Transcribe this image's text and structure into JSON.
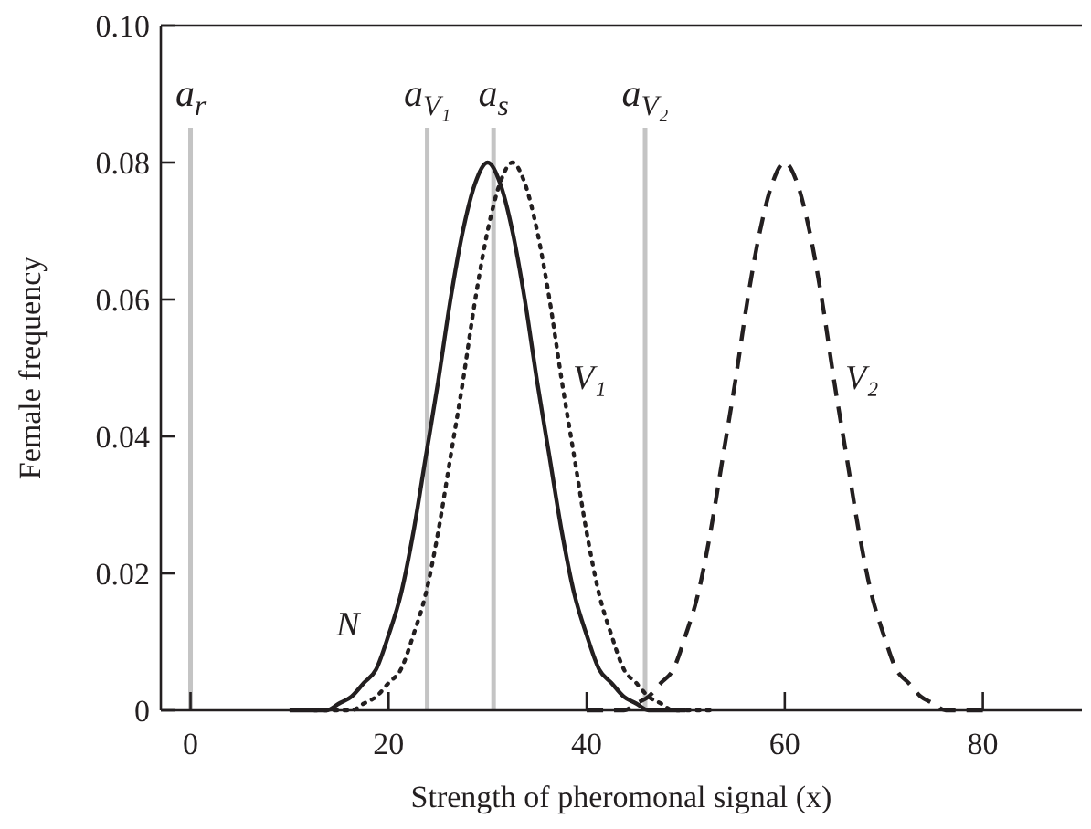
{
  "chart_data": {
    "type": "line",
    "xlabel": "Strength of pheromonal signal (x)",
    "ylabel": "Female frequency",
    "xlim": [
      -3,
      90
    ],
    "ylim": [
      0,
      0.1
    ],
    "xticks": [
      0,
      20,
      40,
      60,
      80
    ],
    "yticks": [
      0,
      0.02,
      0.04,
      0.06,
      0.08,
      {
        "value": 0.1,
        "label": "0.10"
      }
    ],
    "series": [
      {
        "name": "N",
        "color": "#231f20",
        "line_style": "solid",
        "x": [
          10,
          11.25,
          12.5,
          13.75,
          15,
          16.25,
          17.5,
          18.75,
          20,
          21.25,
          22.5,
          23.75,
          25,
          26.25,
          27.5,
          28.75,
          30,
          31.25,
          32.5,
          33.75,
          35,
          36.25,
          37.5,
          38.75,
          40,
          41.25,
          42.5,
          43.75,
          45,
          46.25,
          47.5,
          48.75,
          50
        ],
        "values": [
          0,
          0,
          0,
          0,
          0.001,
          0.002,
          0.004,
          0.006,
          0.011,
          0.017,
          0.026,
          0.037,
          0.048,
          0.06,
          0.07,
          0.077,
          0.08,
          0.077,
          0.07,
          0.06,
          0.048,
          0.037,
          0.026,
          0.017,
          0.011,
          0.006,
          0.004,
          0.002,
          0.001,
          0,
          0,
          0,
          0
        ]
      },
      {
        "name": "V₁",
        "color": "#231f20",
        "line_style": "dotted",
        "x": [
          12.5,
          13.75,
          15,
          16.25,
          17.5,
          18.75,
          20,
          21.25,
          22.5,
          23.75,
          25,
          26.25,
          27.5,
          28.75,
          30,
          31.25,
          32.5,
          33.75,
          35,
          36.25,
          37.5,
          38.75,
          40,
          41.25,
          42.5,
          43.75,
          45,
          46.25,
          47.5,
          48.75,
          50,
          51.25,
          52.5
        ],
        "values": [
          0,
          0,
          0,
          0,
          0.001,
          0.002,
          0.004,
          0.006,
          0.011,
          0.017,
          0.026,
          0.037,
          0.048,
          0.06,
          0.07,
          0.077,
          0.08,
          0.077,
          0.07,
          0.06,
          0.048,
          0.037,
          0.026,
          0.017,
          0.011,
          0.006,
          0.004,
          0.002,
          0.001,
          0,
          0,
          0,
          0
        ]
      },
      {
        "name": "V₂",
        "color": "#231f20",
        "line_style": "dashed",
        "x": [
          40,
          41.25,
          42.5,
          43.75,
          45,
          46.25,
          47.5,
          48.75,
          50,
          51.25,
          52.5,
          53.75,
          55,
          56.25,
          57.5,
          58.75,
          60,
          61.25,
          62.5,
          63.75,
          65,
          66.25,
          67.5,
          68.75,
          70,
          71.25,
          72.5,
          73.75,
          75,
          76.25,
          77.5,
          78.75,
          80
        ],
        "values": [
          0,
          0,
          0,
          0,
          0.001,
          0.002,
          0.004,
          0.006,
          0.011,
          0.017,
          0.026,
          0.037,
          0.048,
          0.06,
          0.07,
          0.077,
          0.08,
          0.077,
          0.07,
          0.06,
          0.048,
          0.037,
          0.026,
          0.017,
          0.011,
          0.006,
          0.004,
          0.002,
          0.001,
          0,
          0,
          0,
          0
        ]
      }
    ],
    "ref_lines": [
      {
        "axis": "x",
        "value": 0,
        "label": "a$_{r}$",
        "color": "#c4c4c4"
      },
      {
        "axis": "x",
        "value": 23.9,
        "label": "a$_{V₁}$",
        "color": "#c4c4c4"
      },
      {
        "axis": "x",
        "value": 30.6,
        "label": "a$_{s}$",
        "color": "#c4c4c4"
      },
      {
        "axis": "x",
        "value": 45.9,
        "label": "a$_{V₂}$",
        "color": "#c4c4c4"
      }
    ]
  }
}
